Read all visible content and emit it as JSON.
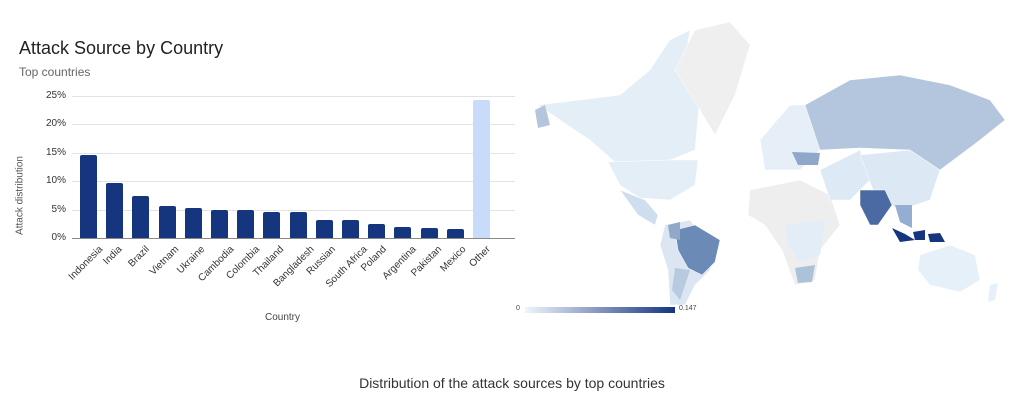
{
  "title": "Attack Source by Country",
  "subtitle": "Top countries",
  "caption": "Distribution of the attack sources by top countries",
  "chart_data": [
    {
      "type": "bar",
      "title": "Attack Source by Country",
      "subtitle": "Top countries",
      "xlabel": "Country",
      "ylabel": "Attack distribution",
      "ylim": [
        0,
        25
      ],
      "yticks": [
        "0%",
        "5%",
        "10%",
        "15%",
        "20%",
        "25%"
      ],
      "grid": true,
      "categories": [
        "Indonesia",
        "India",
        "Brazil",
        "Vietnam",
        "Ukraine",
        "Cambodia",
        "Colombia",
        "Thailand",
        "Bangladesh",
        "Russian",
        "South Africa",
        "Poland",
        "Argentina",
        "Pakistan",
        "Mexico",
        "Other"
      ],
      "values": [
        14.6,
        9.6,
        7.4,
        5.6,
        5.2,
        5.0,
        5.0,
        4.6,
        4.6,
        3.1,
        3.1,
        2.5,
        1.9,
        1.7,
        1.5,
        24.3
      ],
      "unit": "%",
      "colors": {
        "bar": "#15357f",
        "other": "#c9dbfa"
      }
    },
    {
      "type": "heatmap",
      "subtype": "choropleth-world",
      "legend": {
        "min_label": "0",
        "max_label": "0.147",
        "min_color": "#f0f5fb",
        "max_color": "#15357f"
      },
      "highlighted_regions": [
        "Indonesia",
        "India",
        "Brazil",
        "Ukraine",
        "Russia",
        "Vietnam",
        "Colombia",
        "South Africa",
        "Argentina"
      ],
      "no_data_color": "#eeeeee"
    }
  ],
  "axis": {
    "yticks": [
      "25%",
      "20%",
      "15%",
      "10%",
      "5%",
      "0%"
    ],
    "ylabel": "Attack distribution",
    "xlabel": "Country"
  },
  "legend": {
    "min": "0",
    "max": "0.147"
  }
}
